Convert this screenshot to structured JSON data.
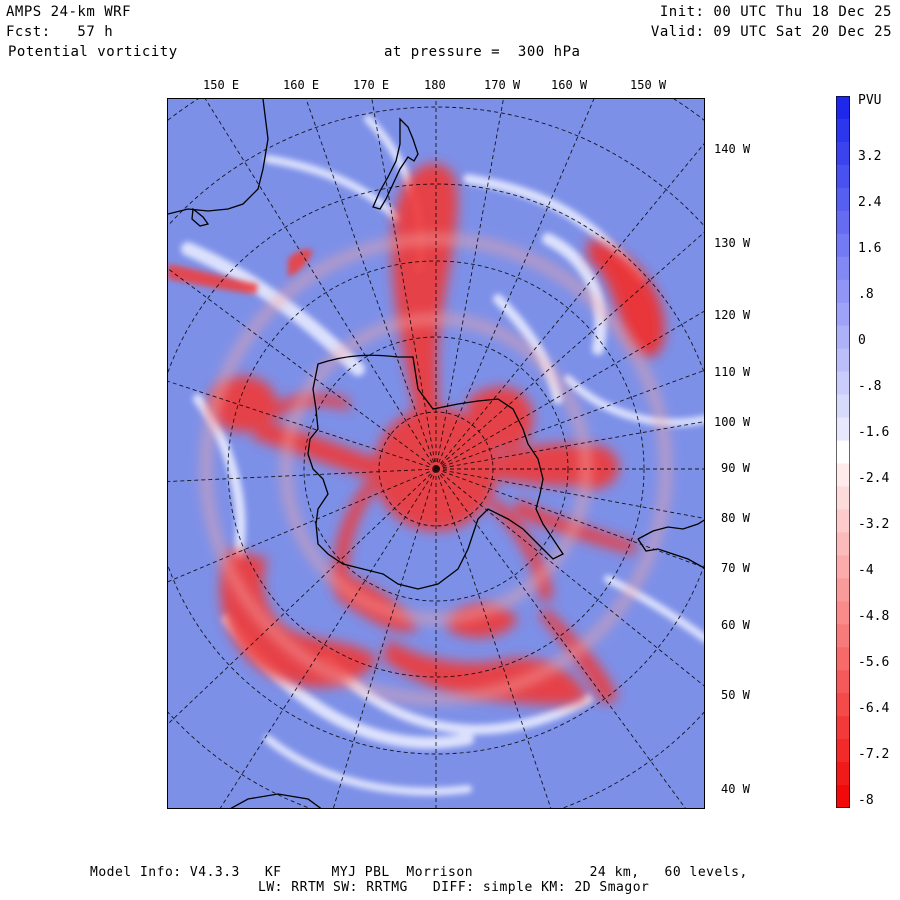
{
  "header": {
    "model": "AMPS 24-km WRF",
    "forecast": "Fcst:   57 h",
    "field": "Potential vorticity",
    "pressure": "at pressure =  300 hPa",
    "init": "Init: 00 UTC Thu 18 Dec 25",
    "valid": "Valid: 09 UTC Sat 20 Dec 25"
  },
  "top_longitude_labels": [
    "150 E",
    "160 E",
    "170 E",
    "180",
    "170 W",
    "160 W",
    "150 W"
  ],
  "right_longitude_labels": [
    "140 W",
    "130 W",
    "120 W",
    "110 W",
    "100 W",
    "90 W",
    "80 W",
    "70 W",
    "60 W",
    "50 W",
    "40 W"
  ],
  "colorbar": {
    "unit": "PVU",
    "labels": [
      "3.2",
      "2.4",
      "1.6",
      ".8",
      "0",
      "-.8",
      "-1.6",
      "-2.4",
      "-3.2",
      "-4",
      "-4.8",
      "-5.6",
      "-6.4",
      "-7.2",
      "-8"
    ]
  },
  "footer": {
    "line1": "Model Info: V4.3.3   KF      MYJ PBL  Morrison              24 km,   60 levels,",
    "line2": "LW: RRTM SW: RRTMG   DIFF: simple KM: 2D Smagor"
  },
  "colors": {
    "background_blue": "#7b8fe8",
    "high_pv_red": "#ee3030",
    "neutral": "#ffffff"
  }
}
